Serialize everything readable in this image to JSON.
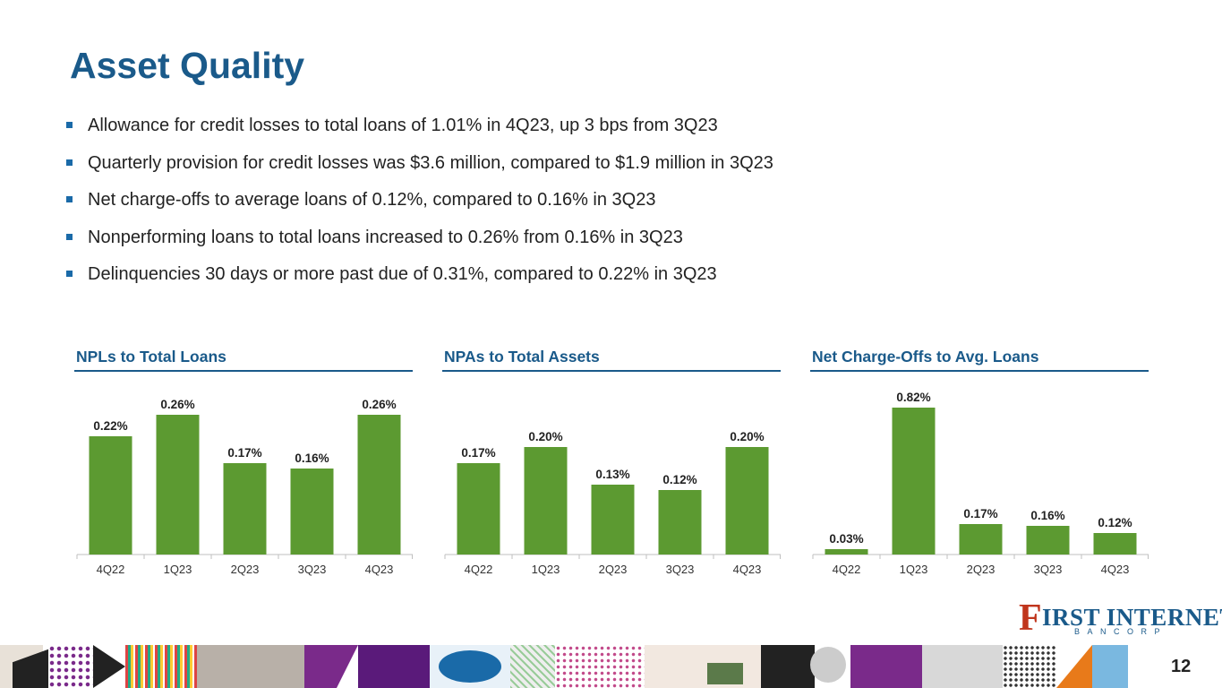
{
  "page": {
    "title": "Asset Quality",
    "page_number": "12"
  },
  "bullets": [
    "Allowance for credit losses to total loans of 1.01% in 4Q23, up 3 bps from 3Q23",
    "Quarterly provision for credit losses was $3.6 million, compared to $1.9 million in 3Q23",
    "Net charge-offs to average loans of 0.12%, compared to 0.16% in 3Q23",
    "Nonperforming loans to total loans increased to 0.26% from 0.16% in 3Q23",
    "Delinquencies 30 days or more past due of 0.31%, compared to 0.22% in 3Q23"
  ],
  "logo": {
    "big_letter": "F",
    "name": "IRST INTERNET",
    "sub": "BANCORP"
  },
  "colors": {
    "bar": "#5c9a31",
    "title": "#1a5a8a",
    "bullet": "#1a6aa8",
    "logo_red": "#c0351c"
  },
  "chart_data": [
    {
      "type": "bar",
      "title": "NPLs to Total Loans",
      "categories": [
        "4Q22",
        "1Q23",
        "2Q23",
        "3Q23",
        "4Q23"
      ],
      "values": [
        0.22,
        0.26,
        0.17,
        0.16,
        0.26
      ],
      "labels": [
        "0.22%",
        "0.26%",
        "0.17%",
        "0.16%",
        "0.26%"
      ],
      "ylim": [
        0,
        0.3
      ],
      "xlabel": "",
      "ylabel": ""
    },
    {
      "type": "bar",
      "title": "NPAs to Total Assets",
      "categories": [
        "4Q22",
        "1Q23",
        "2Q23",
        "3Q23",
        "4Q23"
      ],
      "values": [
        0.17,
        0.2,
        0.13,
        0.12,
        0.2
      ],
      "labels": [
        "0.17%",
        "0.20%",
        "0.13%",
        "0.12%",
        "0.20%"
      ],
      "ylim": [
        0,
        0.3
      ],
      "xlabel": "",
      "ylabel": ""
    },
    {
      "type": "bar",
      "title": "Net Charge-Offs to Avg. Loans",
      "categories": [
        "4Q22",
        "1Q23",
        "2Q23",
        "3Q23",
        "4Q23"
      ],
      "values": [
        0.03,
        0.82,
        0.17,
        0.16,
        0.12
      ],
      "labels": [
        "0.03%",
        "0.82%",
        "0.17%",
        "0.16%",
        "0.12%"
      ],
      "ylim": [
        0,
        0.9
      ],
      "xlabel": "",
      "ylabel": ""
    }
  ]
}
